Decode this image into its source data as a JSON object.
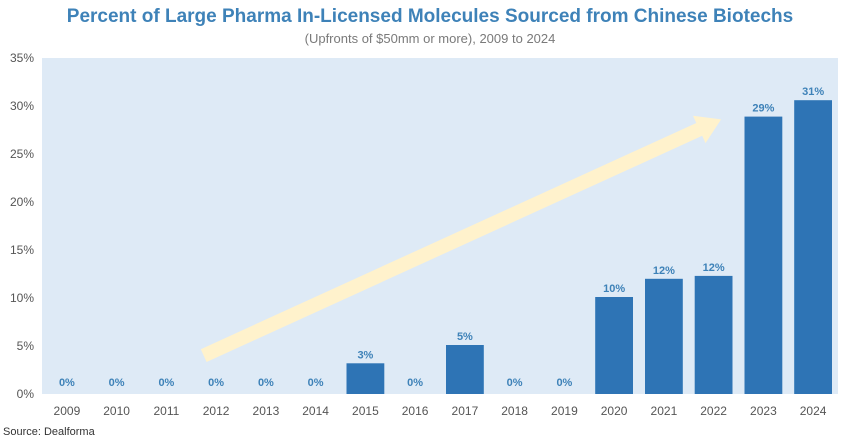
{
  "title": "Percent of Large Pharma In-Licensed Molecules Sourced from Chinese Biotechs",
  "subtitle": "(Upfronts of $50mm or more), 2009 to 2024",
  "source": "Source: Dealforma",
  "colors": {
    "bar": "#2E74B5",
    "plot_background": "#DEEAF6",
    "title": "#3E82B8",
    "data_label": "#3E82B8",
    "arrow": "#FFF2CC"
  },
  "chart_data": {
    "type": "bar",
    "categories": [
      "2009",
      "2010",
      "2011",
      "2012",
      "2013",
      "2014",
      "2015",
      "2016",
      "2017",
      "2018",
      "2019",
      "2020",
      "2021",
      "2022",
      "2023",
      "2024"
    ],
    "values": [
      0,
      0,
      0,
      0,
      0,
      0,
      3.2,
      0,
      5.1,
      0,
      0,
      10.1,
      12.0,
      12.3,
      28.9,
      30.6
    ],
    "data_labels": [
      "0%",
      "0%",
      "0%",
      "0%",
      "0%",
      "0%",
      "3%",
      "0%",
      "5%",
      "0%",
      "0%",
      "10%",
      "12%",
      "12%",
      "29%",
      "31%"
    ],
    "ylim": [
      0,
      35
    ],
    "yticks": [
      0,
      5,
      10,
      15,
      20,
      25,
      30,
      35
    ],
    "ytick_labels": [
      "0%",
      "5%",
      "10%",
      "15%",
      "20%",
      "25%",
      "30%",
      "35%"
    ],
    "grid": false,
    "annotation": "upward trend arrow from 2012 to 2022"
  }
}
